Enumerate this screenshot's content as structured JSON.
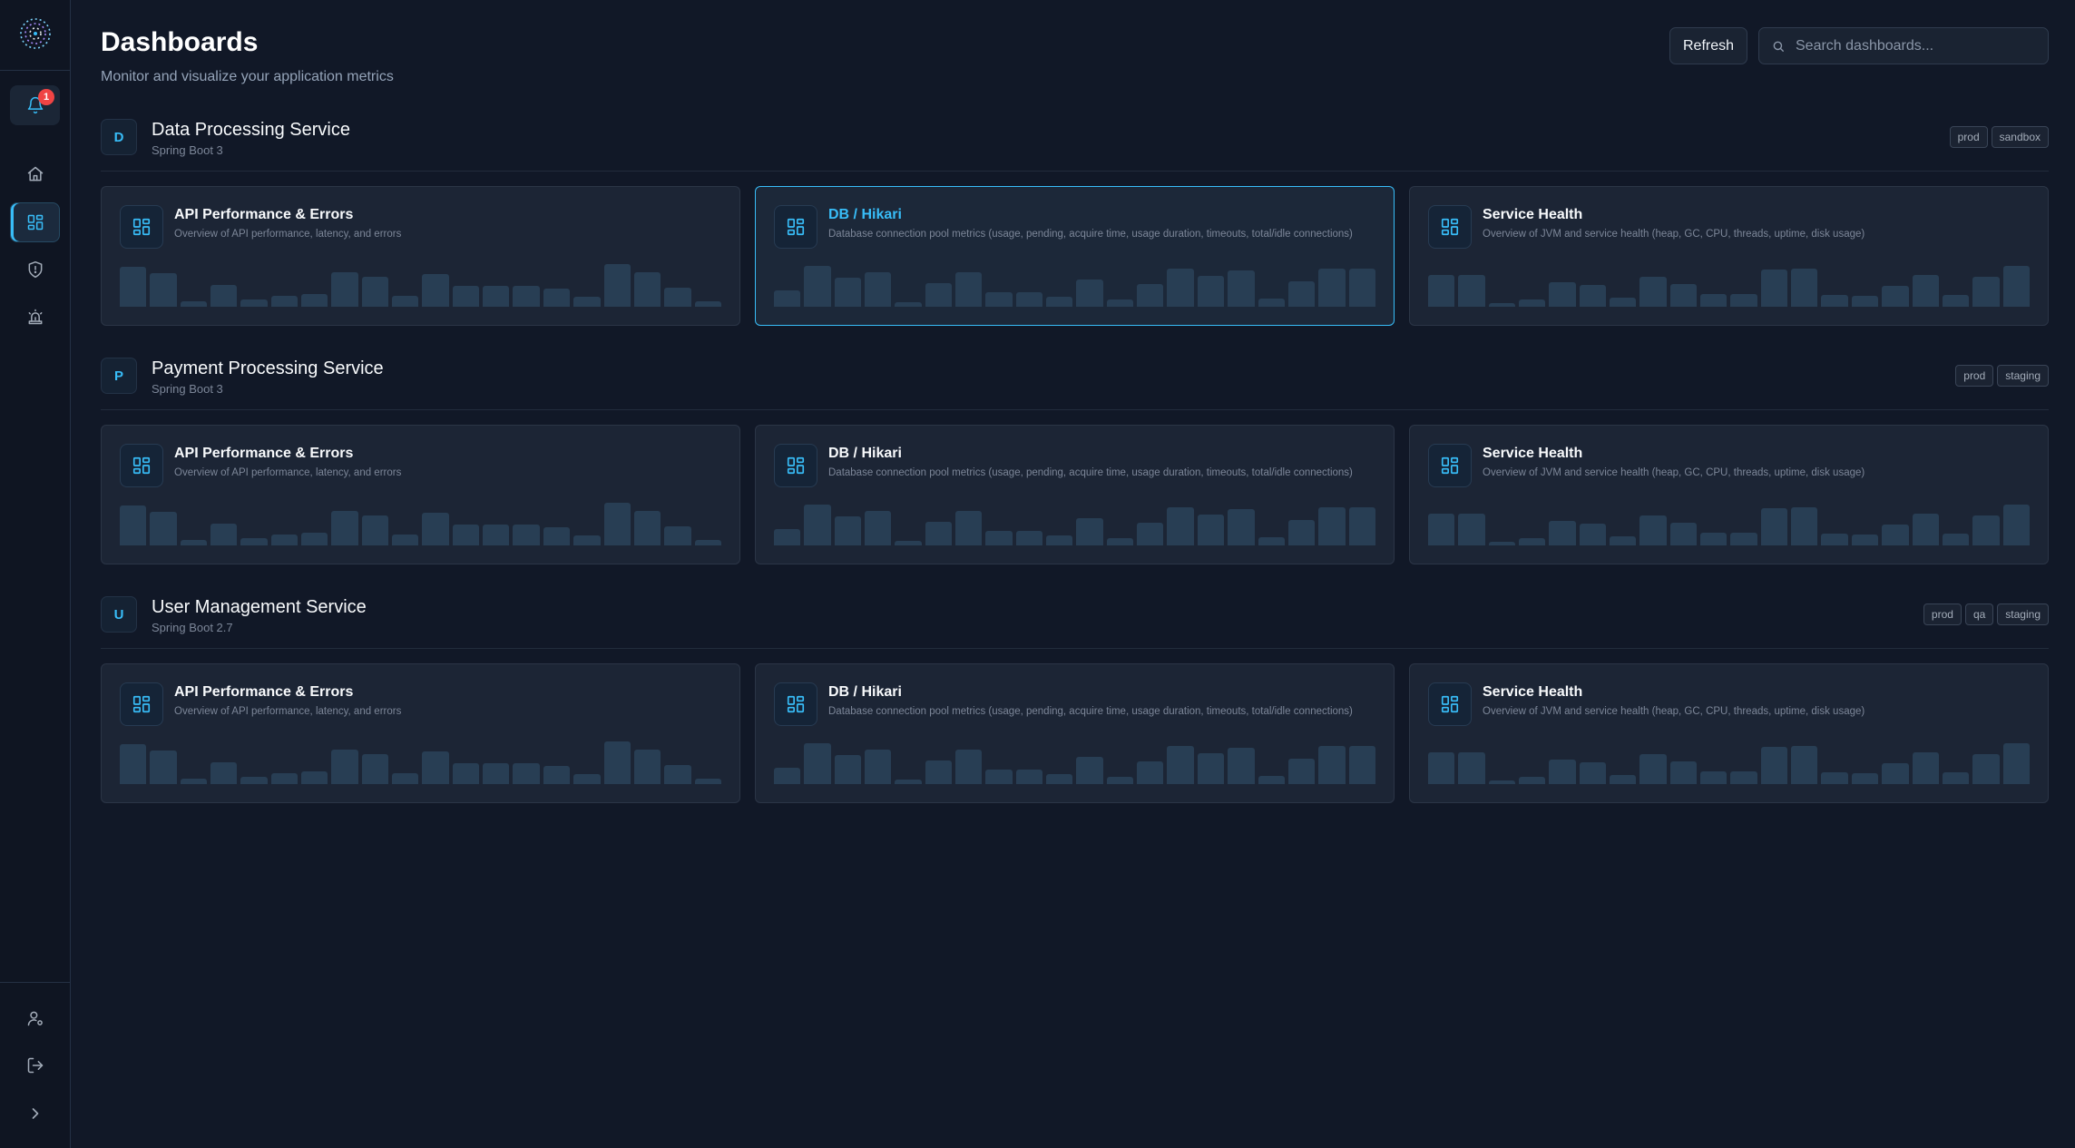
{
  "app": {
    "logo_icon": "app-logo-icon"
  },
  "sidebar": {
    "notification_count": "1",
    "items": [
      {
        "name": "home",
        "icon": "home-icon"
      },
      {
        "name": "dashboards",
        "icon": "dashboard-grid-icon",
        "active": true
      },
      {
        "name": "security",
        "icon": "shield-icon"
      },
      {
        "name": "alerts",
        "icon": "alarm-icon"
      }
    ],
    "bottom": [
      {
        "name": "profile",
        "icon": "user-settings-icon"
      },
      {
        "name": "logout",
        "icon": "logout-icon"
      },
      {
        "name": "expand",
        "icon": "chevron-right-icon"
      }
    ]
  },
  "header": {
    "title": "Dashboards",
    "subtitle": "Monitor and visualize your application metrics",
    "refresh_label": "Refresh",
    "search_placeholder": "Search dashboards..."
  },
  "colors": {
    "accent": "#38bdf8",
    "background": "#111827",
    "card": "#1c2535",
    "badge": "#ef4444"
  },
  "groups": [
    {
      "initial": "D",
      "name": "Data Processing Service",
      "framework": "Spring Boot 3",
      "envs": [
        "prod",
        "sandbox"
      ],
      "cards": [
        {
          "title": "API Performance & Errors",
          "description": "Overview of API performance, latency, and errors"
        },
        {
          "title": "DB / Hikari",
          "description": "Database connection pool metrics (usage, pending, acquire time, usage duration, timeouts, total/idle connections)",
          "selected": true
        },
        {
          "title": "Service Health",
          "description": "Overview of JVM and service health (heap, GC, CPU, threads, uptime, disk usage)"
        }
      ]
    },
    {
      "initial": "P",
      "name": "Payment Processing Service",
      "framework": "Spring Boot 3",
      "envs": [
        "prod",
        "staging"
      ],
      "cards": [
        {
          "title": "API Performance & Errors",
          "description": "Overview of API performance, latency, and errors"
        },
        {
          "title": "DB / Hikari",
          "description": "Database connection pool metrics (usage, pending, acquire time, usage duration, timeouts, total/idle connections)"
        },
        {
          "title": "Service Health",
          "description": "Overview of JVM and service health (heap, GC, CPU, threads, uptime, disk usage)"
        }
      ]
    },
    {
      "initial": "U",
      "name": "User Management Service",
      "framework": "Spring Boot 2.7",
      "envs": [
        "prod",
        "qa",
        "staging"
      ],
      "cards": [
        {
          "title": "API Performance & Errors",
          "description": "Overview of API performance, latency, and errors"
        },
        {
          "title": "DB / Hikari",
          "description": "Database connection pool metrics (usage, pending, acquire time, usage duration, timeouts, total/idle connections)"
        },
        {
          "title": "Service Health",
          "description": "Overview of JVM and service health (heap, GC, CPU, threads, uptime, disk usage)"
        }
      ]
    }
  ]
}
